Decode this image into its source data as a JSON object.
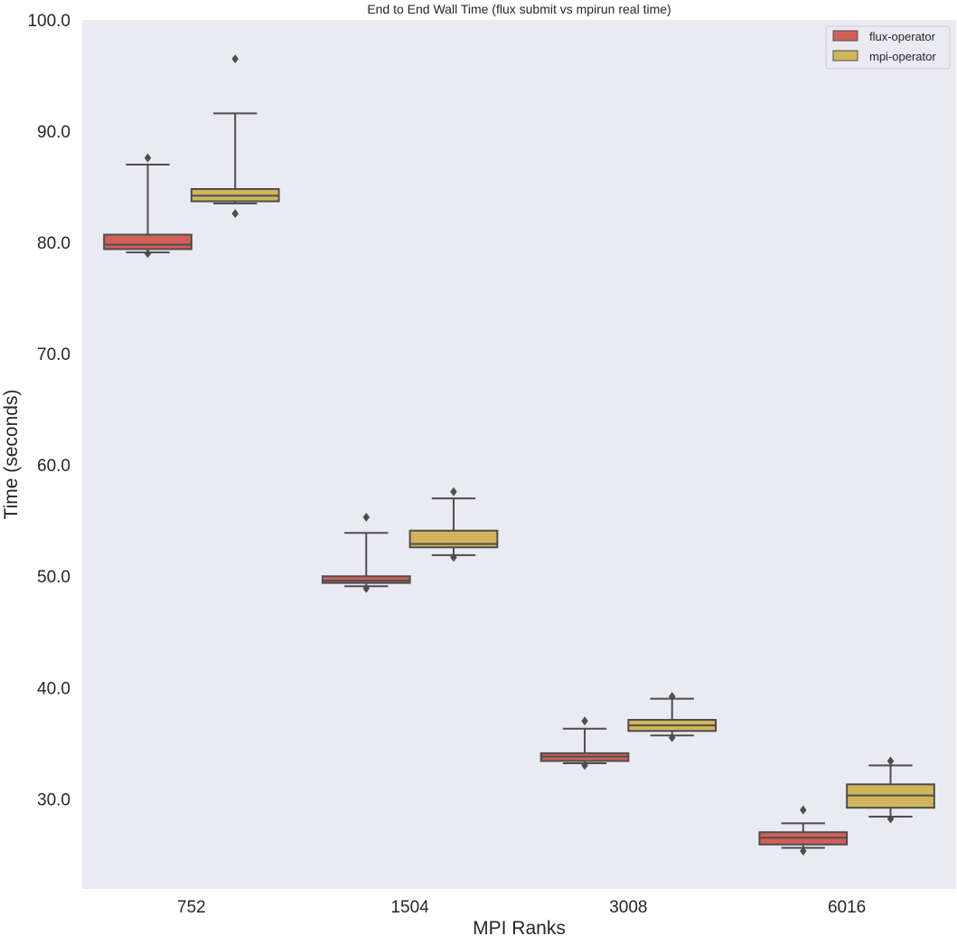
{
  "chart_data": {
    "type": "box",
    "title": "End to End Wall Time (flux submit vs mpirun real time)",
    "xlabel": "MPI Ranks",
    "ylabel": "Time (seconds)",
    "ylim": [
      21.9,
      100.0
    ],
    "yticks": [
      30.0,
      40.0,
      50.0,
      60.0,
      70.0,
      80.0,
      90.0,
      100.0
    ],
    "ytick_labels": [
      "30.0",
      "40.0",
      "50.0",
      "60.0",
      "70.0",
      "80.0",
      "90.0",
      "100.0"
    ],
    "categories": [
      "752",
      "1504",
      "3008",
      "6016"
    ],
    "grid": false,
    "legend_position": "top-right",
    "background": "#eaeaf2",
    "series": [
      {
        "name": "flux-operator",
        "color": "#d35f5a",
        "boxes": [
          {
            "whisker_low": 79.1,
            "q1": 79.4,
            "median": 79.8,
            "q3": 80.7,
            "whisker_high": 87.0,
            "outliers": [
              87.6,
              79.0
            ]
          },
          {
            "whisker_low": 49.1,
            "q1": 49.4,
            "median": 49.6,
            "q3": 50.0,
            "whisker_high": 53.9,
            "outliers": [
              55.3,
              48.9
            ]
          },
          {
            "whisker_low": 33.2,
            "q1": 33.4,
            "median": 33.8,
            "q3": 34.1,
            "whisker_high": 36.3,
            "outliers": [
              37.0,
              33.0
            ]
          },
          {
            "whisker_low": 25.6,
            "q1": 25.9,
            "median": 26.5,
            "q3": 27.0,
            "whisker_high": 27.8,
            "outliers": [
              29.0,
              25.3
            ]
          }
        ]
      },
      {
        "name": "mpi-operator",
        "color": "#d1b55b",
        "boxes": [
          {
            "whisker_low": 83.5,
            "q1": 83.7,
            "median": 84.2,
            "q3": 84.8,
            "whisker_high": 91.6,
            "outliers": [
              96.5,
              82.6
            ]
          },
          {
            "whisker_low": 51.9,
            "q1": 52.6,
            "median": 52.9,
            "q3": 54.1,
            "whisker_high": 57.0,
            "outliers": [
              57.6,
              51.7
            ]
          },
          {
            "whisker_low": 35.7,
            "q1": 36.1,
            "median": 36.6,
            "q3": 37.1,
            "whisker_high": 39.0,
            "outliers": [
              39.2,
              35.5
            ]
          },
          {
            "whisker_low": 28.4,
            "q1": 29.2,
            "median": 30.3,
            "q3": 31.3,
            "whisker_high": 33.0,
            "outliers": [
              33.4,
              28.2
            ]
          }
        ]
      }
    ]
  }
}
